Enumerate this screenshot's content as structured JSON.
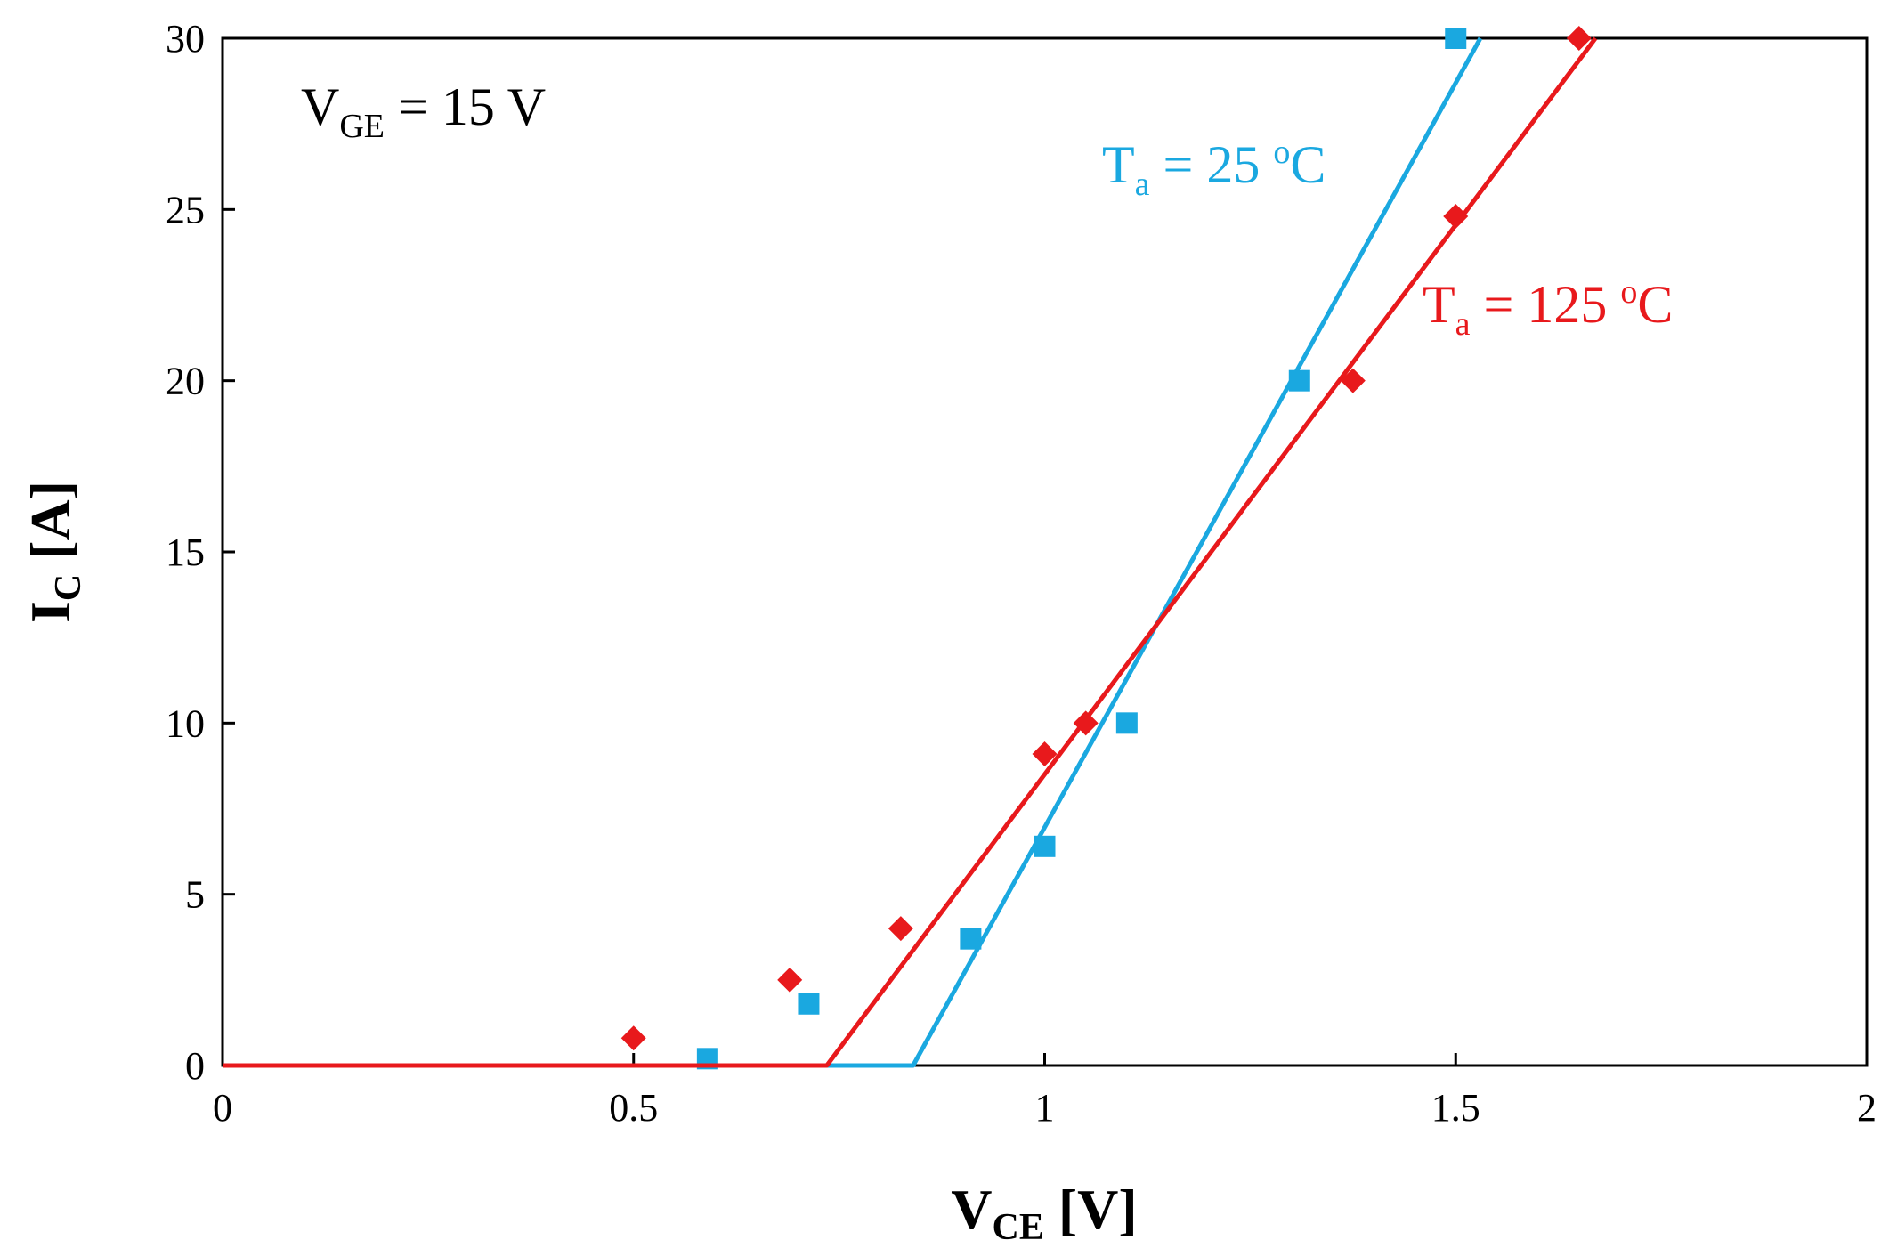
{
  "chart_data": {
    "type": "scatter",
    "title": "",
    "xlabel": {
      "main": "V",
      "sub": "CE",
      "unit": " [V]"
    },
    "ylabel": {
      "main": "I",
      "sub": "C",
      "unit": " [A]"
    },
    "xlim": [
      0,
      2
    ],
    "ylim": [
      0,
      30
    ],
    "x_ticks": [
      0,
      0.5,
      1,
      1.5,
      2
    ],
    "x_tick_labels": [
      "0",
      "0.5",
      "1",
      "1.5",
      "2"
    ],
    "y_ticks": [
      0,
      5,
      10,
      15,
      20,
      25,
      30
    ],
    "y_tick_labels": [
      "0",
      "5",
      "10",
      "15",
      "20",
      "25",
      "30"
    ],
    "grid": false,
    "condition": {
      "main": "V",
      "sub": "GE",
      "rest": " = 15 V"
    },
    "series": [
      {
        "name": "Ta = 25 oC",
        "label": {
          "main": "T",
          "sub": "a",
          "mid": " = 25 ",
          "sup": "o",
          "end": "C"
        },
        "color": "#1aa8e0",
        "marker": "square",
        "points": [
          {
            "x": 0.59,
            "y": 0.2
          },
          {
            "x": 0.713,
            "y": 1.8
          },
          {
            "x": 0.91,
            "y": 3.7
          },
          {
            "x": 1.0,
            "y": 6.4
          },
          {
            "x": 1.1,
            "y": 10.0
          },
          {
            "x": 1.31,
            "y": 20.0
          },
          {
            "x": 1.5,
            "y": 30.0
          }
        ],
        "fit_line": [
          {
            "x": 0,
            "y": 0
          },
          {
            "x": 0.84,
            "y": 0
          },
          {
            "x": 1.53,
            "y": 30
          }
        ]
      },
      {
        "name": "Ta = 125 oC",
        "label": {
          "main": "T",
          "sub": "a",
          "mid": " = 125 ",
          "sup": "o",
          "end": "C"
        },
        "color": "#e8191c",
        "marker": "diamond",
        "points": [
          {
            "x": 0.5,
            "y": 0.8
          },
          {
            "x": 0.69,
            "y": 2.5
          },
          {
            "x": 0.825,
            "y": 4.0
          },
          {
            "x": 1.0,
            "y": 9.1
          },
          {
            "x": 1.05,
            "y": 10.0
          },
          {
            "x": 1.375,
            "y": 20.0
          },
          {
            "x": 1.5,
            "y": 24.8
          },
          {
            "x": 1.65,
            "y": 30.0
          }
        ],
        "fit_line": [
          {
            "x": 0,
            "y": 0
          },
          {
            "x": 0.735,
            "y": 0
          },
          {
            "x": 1.67,
            "y": 30
          }
        ]
      }
    ]
  }
}
